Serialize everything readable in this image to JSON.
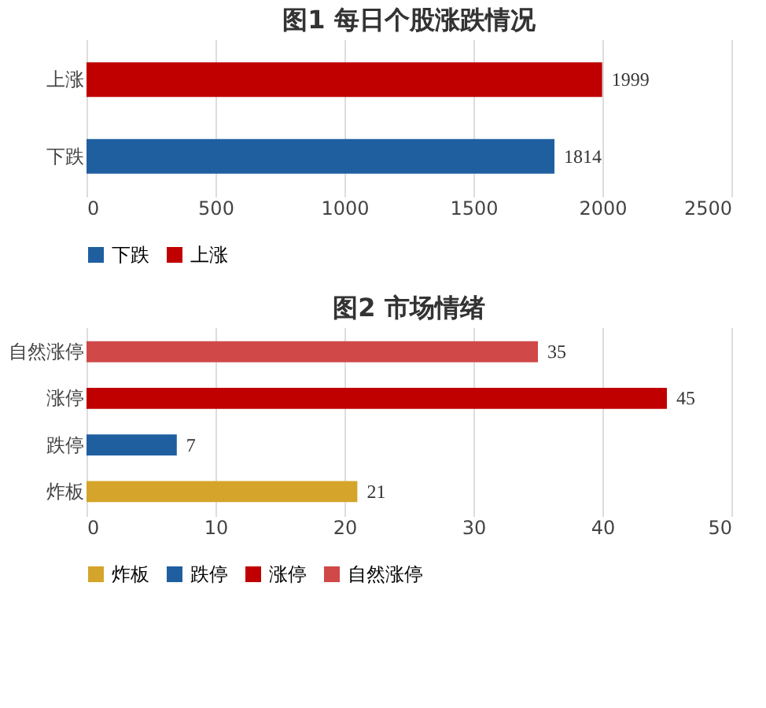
{
  "chart_data": [
    {
      "type": "bar",
      "orientation": "horizontal",
      "title": "图1  每日个股涨跌情况",
      "categories": [
        "上涨",
        "下跌"
      ],
      "series": [
        {
          "name": "下跌",
          "color": "#1f5fa0",
          "values": [
            null,
            1814
          ]
        },
        {
          "name": "上涨",
          "color": "#c00000",
          "values": [
            1999,
            null
          ]
        }
      ],
      "xlim": [
        0,
        2500
      ],
      "xticks": [
        0,
        500,
        1000,
        1500,
        2000,
        2500
      ],
      "grid": "x",
      "legend": "bottom",
      "data_labels": true
    },
    {
      "type": "bar",
      "orientation": "horizontal",
      "title": "图2  市场情绪",
      "categories": [
        "自然涨停",
        "涨停",
        "跌停",
        "炸板"
      ],
      "series": [
        {
          "name": "炸板",
          "color": "#d4a52a",
          "values": [
            null,
            null,
            null,
            21
          ]
        },
        {
          "name": "跌停",
          "color": "#1f5fa0",
          "values": [
            null,
            null,
            7,
            null
          ]
        },
        {
          "name": "涨停",
          "color": "#c00000",
          "values": [
            null,
            45,
            null,
            null
          ]
        },
        {
          "name": "自然涨停",
          "color": "#d04848",
          "values": [
            35,
            null,
            null,
            null
          ]
        }
      ],
      "xlim": [
        0,
        50
      ],
      "xticks": [
        0,
        10,
        20,
        30,
        40,
        50
      ],
      "grid": "x",
      "legend": "bottom",
      "data_labels": true
    }
  ]
}
